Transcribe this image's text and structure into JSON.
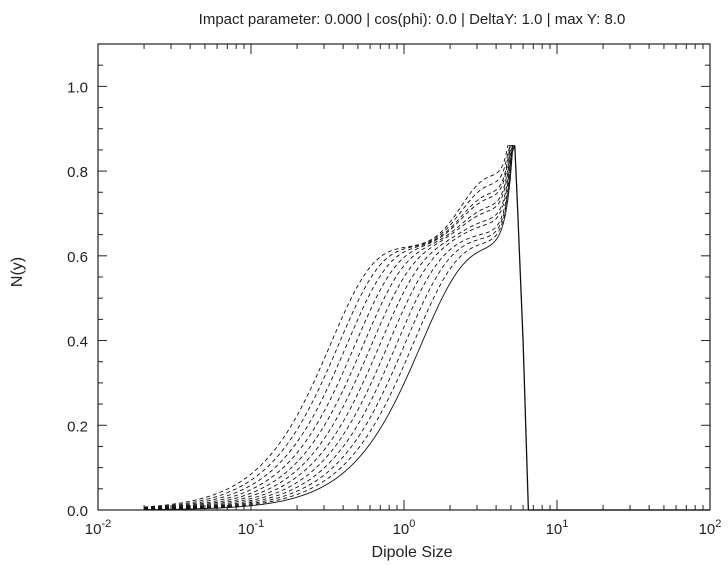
{
  "chart_data": {
    "type": "line",
    "title": "Impact parameter: 0.000 | cos(phi): 0.0 | DeltaY: 1.0 | max Y: 8.0",
    "xlabel": "Dipole Size",
    "ylabel": "N(y)",
    "x_scale": "log",
    "xlim": [
      0.01,
      100
    ],
    "ylim": [
      0.0,
      1.1
    ],
    "grid": false,
    "legend": "none",
    "x_ticks": [
      {
        "base": "10",
        "exp": "-2"
      },
      {
        "base": "10",
        "exp": "-1"
      },
      {
        "base": "10",
        "exp": "0"
      },
      {
        "base": "10",
        "exp": "1"
      },
      {
        "base": "10",
        "exp": "2"
      }
    ],
    "y_ticks": [
      "0.0",
      "0.2",
      "0.4",
      "0.6",
      "0.8",
      "1.0"
    ],
    "series": [
      {
        "style": "solid",
        "peak": 0.6,
        "shift": 0.0
      },
      {
        "style": "dashed",
        "peak": 0.61,
        "shift": 0.05
      },
      {
        "style": "dashed",
        "peak": 0.62,
        "shift": 0.1
      },
      {
        "style": "dashed",
        "peak": 0.63,
        "shift": 0.15
      },
      {
        "style": "dashed",
        "peak": 0.65,
        "shift": 0.2
      },
      {
        "style": "dashed",
        "peak": 0.66,
        "shift": 0.25
      },
      {
        "style": "dashed",
        "peak": 0.68,
        "shift": 0.3
      },
      {
        "style": "dashed",
        "peak": 0.69,
        "shift": 0.35
      },
      {
        "style": "dashed",
        "peak": 0.71,
        "shift": 0.4
      },
      {
        "style": "dashed",
        "peak": 0.72,
        "shift": 0.45
      },
      {
        "style": "dashed",
        "peak": 0.74,
        "shift": 0.5
      },
      {
        "style": "dashed",
        "peak": 0.76,
        "shift": 0.55
      }
    ],
    "spike": {
      "x": [
        5.3,
        5.5,
        6.0,
        6.5
      ],
      "y": [
        0.86,
        0.73,
        0.4,
        0.0
      ]
    },
    "colors": {
      "axis": "#222222",
      "line": "#111111",
      "background": "#ffffff"
    }
  }
}
